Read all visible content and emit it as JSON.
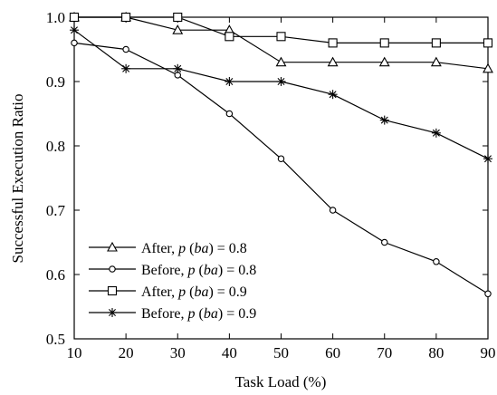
{
  "chart_data": {
    "type": "line",
    "title": "",
    "xlabel": "Task Load (%)",
    "ylabel": "Successful Execution Ratio",
    "x": [
      10,
      20,
      30,
      40,
      50,
      60,
      70,
      80,
      90
    ],
    "xlim": [
      10,
      90
    ],
    "ylim": [
      0.5,
      1.0
    ],
    "xticks": [
      "10",
      "20",
      "30",
      "40",
      "50",
      "60",
      "70",
      "80",
      "90"
    ],
    "yticks": [
      "0.5",
      "0.6",
      "0.7",
      "0.8",
      "0.9",
      "1.0"
    ],
    "grid": false,
    "legend_position": "bottom-left",
    "series": [
      {
        "name": "After, p (ba) = 0.8",
        "prefix": "After, ",
        "var": "p",
        "mid": " (",
        "arg": "ba",
        "suffix": ") = 0.8",
        "marker": "triangle",
        "values": [
          1.0,
          1.0,
          0.98,
          0.98,
          0.93,
          0.93,
          0.93,
          0.93,
          0.92
        ]
      },
      {
        "name": "Before, p (ba) = 0.8",
        "prefix": "Before, ",
        "var": "p",
        "mid": " (",
        "arg": "ba",
        "suffix": ") = 0.8",
        "marker": "circle",
        "values": [
          0.96,
          0.95,
          0.91,
          0.85,
          0.78,
          0.7,
          0.65,
          0.62,
          0.57
        ]
      },
      {
        "name": "After, p (ba) = 0.9",
        "prefix": "After, ",
        "var": "p",
        "mid": " (",
        "arg": "ba",
        "suffix": ") = 0.9",
        "marker": "square",
        "values": [
          1.0,
          1.0,
          1.0,
          0.97,
          0.97,
          0.96,
          0.96,
          0.96,
          0.96
        ]
      },
      {
        "name": "Before, p (ba) = 0.9",
        "prefix": "Before, ",
        "var": "p",
        "mid": " (",
        "arg": "ba",
        "suffix": ") = 0.9",
        "marker": "asterisk",
        "values": [
          0.98,
          0.92,
          0.92,
          0.9,
          0.9,
          0.88,
          0.84,
          0.82,
          0.78
        ]
      }
    ]
  }
}
